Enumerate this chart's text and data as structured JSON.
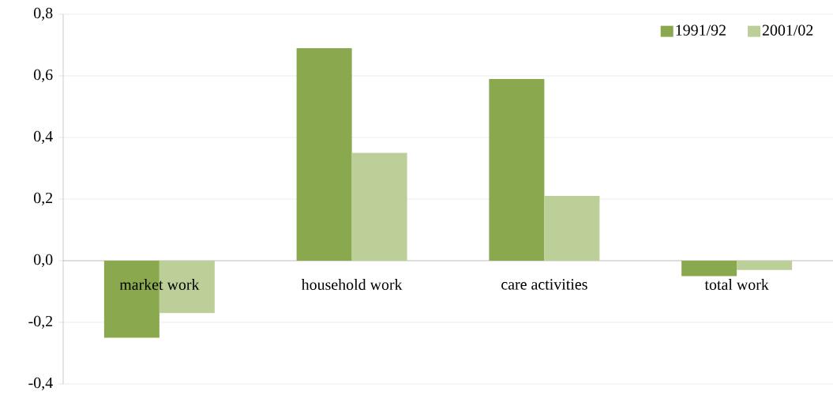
{
  "chart_data": {
    "type": "bar",
    "categories": [
      "market work",
      "household work",
      "care activities",
      "total work"
    ],
    "series": [
      {
        "name": "1991/92",
        "color": "#8aa84d",
        "values": [
          -0.25,
          0.69,
          0.59,
          -0.05
        ]
      },
      {
        "name": "2001/02",
        "color": "#bccf98",
        "values": [
          -0.17,
          0.35,
          0.21,
          -0.03
        ]
      }
    ],
    "ylim": [
      -0.4,
      0.8
    ],
    "yticks": [
      {
        "value": -0.4,
        "label": "-0,4"
      },
      {
        "value": -0.2,
        "label": "-0,2"
      },
      {
        "value": 0.0,
        "label": "0,0"
      },
      {
        "value": 0.2,
        "label": "0,2"
      },
      {
        "value": 0.4,
        "label": "0,4"
      },
      {
        "value": 0.6,
        "label": "0,6"
      },
      {
        "value": 0.8,
        "label": "0,8"
      }
    ],
    "grid": "y",
    "legend": "top right"
  }
}
